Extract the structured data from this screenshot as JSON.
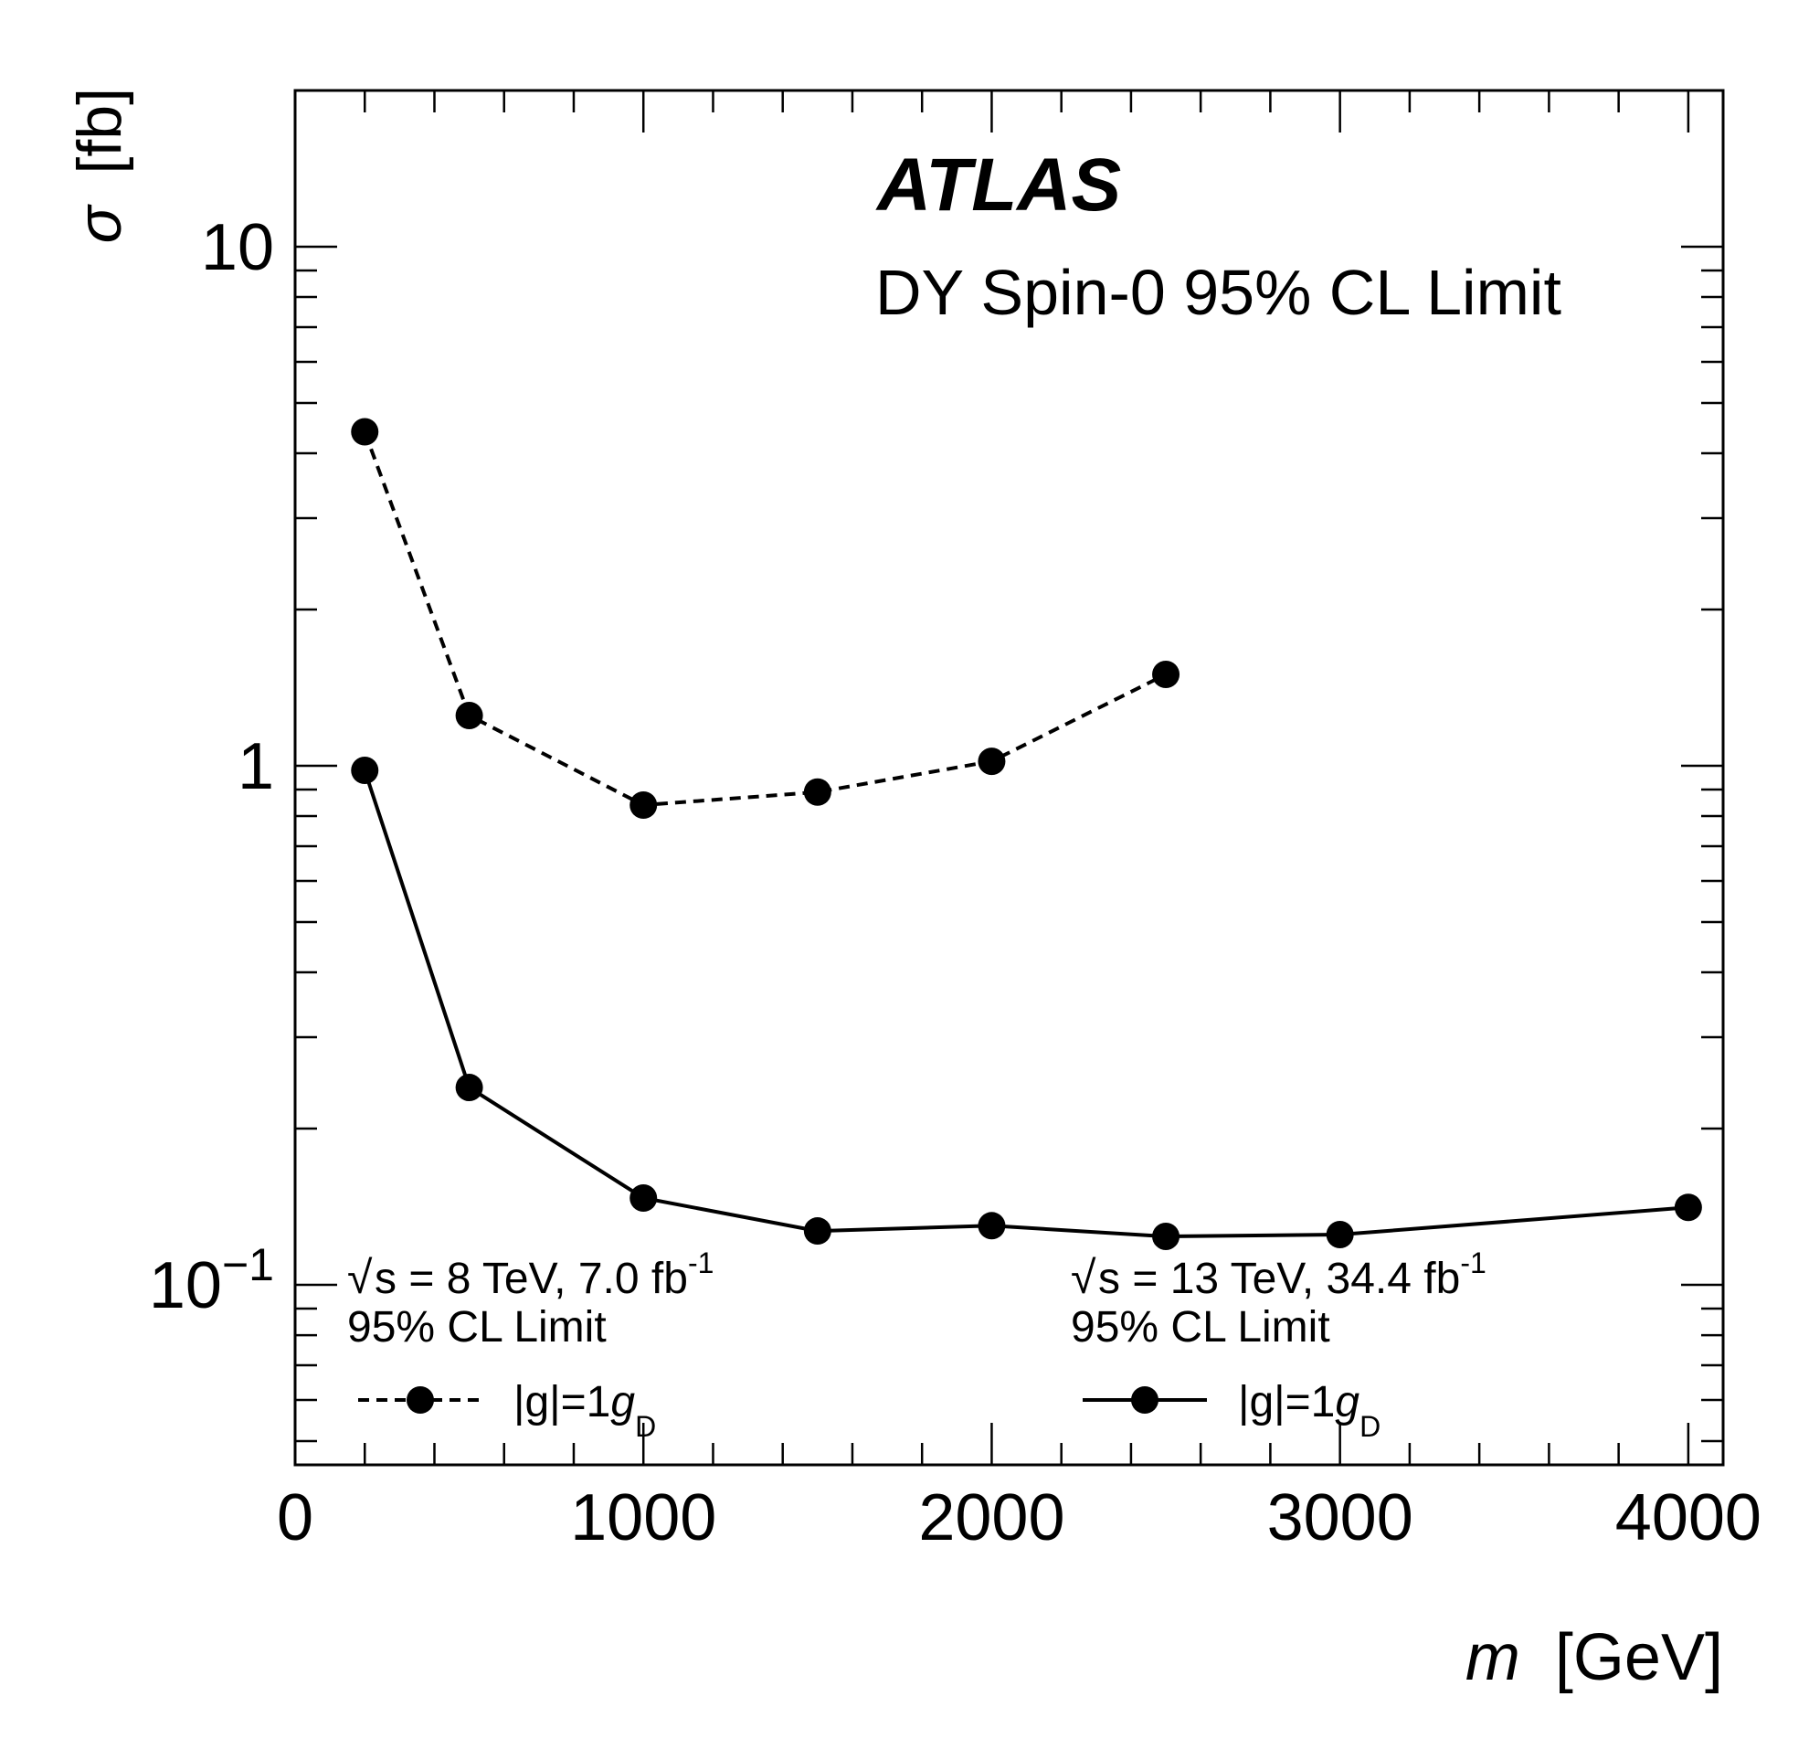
{
  "chart_data": {
    "type": "line",
    "experiment_label": "ATLAS",
    "title": "DY Spin-0 95% CL Limit",
    "xlabel": {
      "var": "m",
      "unit": "[GeV]"
    },
    "ylabel": {
      "var": "σ",
      "unit": "[fb]"
    },
    "xlim": [
      0,
      4100
    ],
    "ylim": [
      0.045,
      20
    ],
    "yscale": "log",
    "grid": false,
    "x_ticks": [
      "0",
      "1000",
      "2000",
      "3000",
      "4000"
    ],
    "y_ticks": [
      {
        "value": 10,
        "label": "10"
      },
      {
        "value": 1,
        "label": "1"
      },
      {
        "value": 0.1,
        "base": "10",
        "exp": "−1"
      }
    ],
    "legends": [
      {
        "energy": "s = 8 TeV, 7.0 fb",
        "energy_exp": "-1",
        "limit": "95% CL Limit",
        "coupling": "|g|=1",
        "coupling_g": "g",
        "coupling_sub": "D",
        "style": "dashed"
      },
      {
        "energy": "s = 13 TeV, 34.4 fb",
        "energy_exp": "-1",
        "limit": "95% CL Limit",
        "coupling": "|g|=1",
        "coupling_g": "g",
        "coupling_sub": "D",
        "style": "solid"
      }
    ],
    "series": [
      {
        "style": "dashed",
        "x": [
          200,
          500,
          1000,
          1500,
          2000,
          2500
        ],
        "y": [
          4.4,
          1.25,
          0.84,
          0.89,
          1.02,
          1.5
        ]
      },
      {
        "style": "solid",
        "x": [
          200,
          500,
          1000,
          1500,
          2000,
          2500,
          3000,
          4000
        ],
        "y": [
          0.98,
          0.24,
          0.147,
          0.127,
          0.13,
          0.124,
          0.125,
          0.141
        ]
      }
    ]
  }
}
